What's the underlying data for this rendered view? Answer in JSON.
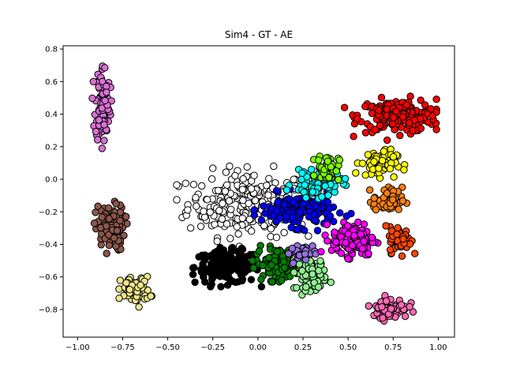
{
  "chart_data": {
    "type": "scatter",
    "title": "Sim4 - GT - AE",
    "xlabel": "",
    "ylabel": "",
    "xlim": [
      -1.08,
      1.09
    ],
    "ylim": [
      -0.97,
      0.82
    ],
    "x_ticks": [
      -1.0,
      -0.75,
      -0.5,
      -0.25,
      0.0,
      0.25,
      0.5,
      0.75,
      1.0
    ],
    "x_tick_labels": [
      "−1.00",
      "−0.75",
      "−0.50",
      "−0.25",
      "0.00",
      "0.25",
      "0.50",
      "0.75",
      "1.00"
    ],
    "y_ticks": [
      -0.8,
      -0.6,
      -0.4,
      -0.2,
      0.0,
      0.2,
      0.4,
      0.6,
      0.8
    ],
    "y_tick_labels": [
      "−0.8",
      "−0.6",
      "−0.4",
      "−0.2",
      "0.0",
      "0.2",
      "0.4",
      "0.6",
      "0.8"
    ],
    "grid": false,
    "legend": "none",
    "marker_edge_color": "#000000",
    "clusters": [
      {
        "color": "#ffffff",
        "cx": -0.05,
        "cy": -0.15,
        "sx": 0.17,
        "sy": 0.1,
        "n": 260,
        "xmin": -0.45,
        "xmax": 0.28,
        "ymin": -0.42,
        "ymax": 0.08
      },
      {
        "color": "#000000",
        "cx": -0.17,
        "cy": -0.54,
        "sx": 0.09,
        "sy": 0.05,
        "n": 180,
        "xmin": -0.36,
        "xmax": 0.02,
        "ymin": -0.66,
        "ymax": -0.42
      },
      {
        "color": "#ff0000",
        "cx": 0.78,
        "cy": 0.39,
        "sx": 0.11,
        "sy": 0.05,
        "n": 190,
        "xmin": 0.48,
        "xmax": 0.99,
        "ymin": 0.24,
        "ymax": 0.52
      },
      {
        "color": "#da70d6",
        "cx": -0.86,
        "cy": 0.47,
        "sx": 0.02,
        "sy": 0.12,
        "n": 110,
        "xmin": -0.92,
        "xmax": -0.79,
        "ymin": 0.19,
        "ymax": 0.75
      },
      {
        "color": "#8c564b",
        "cx": -0.82,
        "cy": -0.3,
        "sx": 0.04,
        "sy": 0.07,
        "n": 120,
        "xmin": -0.95,
        "xmax": -0.68,
        "ymin": -0.46,
        "ymax": -0.1
      },
      {
        "color": "#f0e68c",
        "cx": -0.68,
        "cy": -0.68,
        "sx": 0.04,
        "sy": 0.04,
        "n": 70,
        "xmin": -0.8,
        "xmax": -0.55,
        "ymin": -0.79,
        "ymax": -0.5
      },
      {
        "color": "#008000",
        "cx": 0.11,
        "cy": -0.52,
        "sx": 0.06,
        "sy": 0.05,
        "n": 110,
        "xmin": -0.03,
        "xmax": 0.25,
        "ymin": -0.63,
        "ymax": -0.37
      },
      {
        "color": "#90ee90",
        "cx": 0.3,
        "cy": -0.58,
        "sx": 0.04,
        "sy": 0.05,
        "n": 90,
        "xmin": 0.2,
        "xmax": 0.42,
        "ymin": -0.71,
        "ymax": -0.45
      },
      {
        "color": "#9370db",
        "cx": 0.24,
        "cy": -0.45,
        "sx": 0.04,
        "sy": 0.03,
        "n": 35,
        "xmin": 0.17,
        "xmax": 0.32,
        "ymin": -0.52,
        "ymax": -0.36
      },
      {
        "color": "#0000ff",
        "cx": 0.22,
        "cy": -0.19,
        "sx": 0.1,
        "sy": 0.05,
        "n": 170,
        "xmin": -0.02,
        "xmax": 0.58,
        "ymin": -0.32,
        "ymax": -0.06
      },
      {
        "color": "#00ffff",
        "cx": 0.33,
        "cy": -0.03,
        "sx": 0.07,
        "sy": 0.04,
        "n": 70,
        "xmin": 0.15,
        "xmax": 0.5,
        "ymin": -0.15,
        "ymax": 0.06
      },
      {
        "color": "#7fff00",
        "cx": 0.39,
        "cy": 0.07,
        "sx": 0.03,
        "sy": 0.04,
        "n": 60,
        "xmin": 0.31,
        "xmax": 0.48,
        "ymin": -0.03,
        "ymax": 0.17
      },
      {
        "color": "#ffff00",
        "cx": 0.67,
        "cy": 0.1,
        "sx": 0.05,
        "sy": 0.04,
        "n": 70,
        "xmin": 0.53,
        "xmax": 0.84,
        "ymin": 0.0,
        "ymax": 0.22
      },
      {
        "color": "#ff7f0e",
        "cx": 0.72,
        "cy": -0.13,
        "sx": 0.04,
        "sy": 0.04,
        "n": 70,
        "xmin": 0.62,
        "xmax": 0.83,
        "ymin": -0.24,
        "ymax": -0.02
      },
      {
        "color": "#ff00ff",
        "cx": 0.53,
        "cy": -0.37,
        "sx": 0.06,
        "sy": 0.05,
        "n": 140,
        "xmin": 0.35,
        "xmax": 0.68,
        "ymin": -0.55,
        "ymax": -0.22
      },
      {
        "color": "#ff4500",
        "cx": 0.79,
        "cy": -0.37,
        "sx": 0.03,
        "sy": 0.04,
        "n": 60,
        "xmin": 0.71,
        "xmax": 0.87,
        "ymin": -0.5,
        "ymax": -0.27
      },
      {
        "color": "#ff69b4",
        "cx": 0.73,
        "cy": -0.79,
        "sx": 0.05,
        "sy": 0.03,
        "n": 90,
        "xmin": 0.6,
        "xmax": 0.86,
        "ymin": -0.87,
        "ymax": -0.69
      }
    ]
  }
}
